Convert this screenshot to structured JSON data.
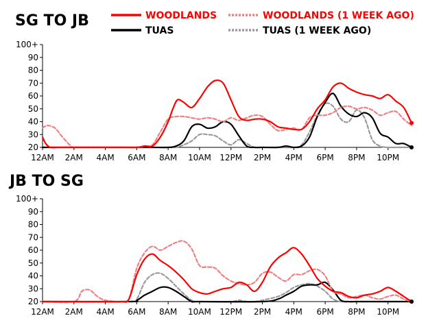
{
  "legend": [
    {
      "label": "WOODLANDS",
      "color": "#ff0000",
      "dashed": false
    },
    {
      "label": "WOODLANDS (1 WEEK AGO)",
      "color": "#f08080",
      "dashed": true
    },
    {
      "label": "TUAS",
      "color": "#000000",
      "dashed": false
    },
    {
      "label": "TUAS (1 WEEK AGO)",
      "color": "#999999",
      "dashed": true
    }
  ],
  "chart_data": [
    {
      "type": "line",
      "title": "SG TO JB",
      "x_ticks": [
        "12AM",
        "2AM",
        "4AM",
        "6AM",
        "8AM",
        "10AM",
        "12PM",
        "2PM",
        "4PM",
        "6PM",
        "8PM",
        "10PM"
      ],
      "y_ticks": [
        "20",
        "30",
        "40",
        "50",
        "60",
        "70",
        "80",
        "90",
        "100+"
      ],
      "ylim": [
        20,
        100
      ],
      "xlim": [
        0,
        23.5
      ],
      "grid": false,
      "legend_position": "top",
      "series": [
        {
          "name": "WOODLANDS",
          "color": "#ff0000",
          "dashed": false,
          "x": [
            0,
            0.2,
            0.5,
            1,
            2,
            4,
            5,
            6,
            6.5,
            7,
            7.5,
            8,
            8.3,
            8.6,
            9,
            9.5,
            10,
            10.5,
            11,
            11.5,
            12,
            12.5,
            13,
            13.5,
            14,
            14.5,
            15,
            15.5,
            16,
            16.5,
            17,
            17.5,
            18,
            18.5,
            19,
            19.5,
            20,
            20.5,
            21,
            21.5,
            22,
            22.5,
            23,
            23.5
          ],
          "y": [
            28,
            23,
            20,
            20,
            20,
            20,
            20,
            20,
            21,
            21,
            28,
            40,
            50,
            57,
            55,
            51,
            58,
            67,
            72,
            70,
            57,
            44,
            41,
            42,
            42,
            40,
            36,
            35,
            34,
            34,
            40,
            50,
            57,
            67,
            70,
            66,
            63,
            61,
            60,
            58,
            61,
            56,
            51,
            39
          ]
        },
        {
          "name": "WOODLANDS (1 WEEK AGO)",
          "color": "#f08080",
          "dashed": true,
          "x": [
            0,
            0.3,
            0.8,
            1.2,
            1.8,
            2,
            4,
            6,
            6.5,
            7,
            7.5,
            8,
            8.5,
            9,
            9.5,
            10,
            10.5,
            11,
            11.5,
            12,
            12.5,
            13,
            13.5,
            14,
            14.5,
            15,
            15.5,
            16,
            16.5,
            17,
            17.5,
            18,
            18.5,
            19,
            19.5,
            20,
            20.5,
            21,
            21.5,
            22,
            22.5,
            23,
            23.5
          ],
          "y": [
            35,
            37,
            35,
            29,
            21,
            20,
            20,
            20,
            21,
            22,
            32,
            42,
            44,
            44,
            43,
            42,
            43,
            42,
            40,
            43,
            41,
            43,
            45,
            44,
            38,
            33,
            34,
            35,
            34,
            43,
            45,
            45,
            47,
            51,
            52,
            50,
            51,
            49,
            45,
            47,
            48,
            42,
            37
          ]
        },
        {
          "name": "TUAS",
          "color": "#000000",
          "dashed": false,
          "x": [
            0,
            6,
            7,
            8,
            8.5,
            9,
            9.5,
            10,
            10.5,
            11,
            11.5,
            12,
            12.5,
            13,
            13.5,
            14,
            15,
            15.5,
            16,
            16.5,
            17,
            17.5,
            18,
            18.5,
            19,
            19.5,
            20,
            20.5,
            21,
            21.5,
            22,
            22.5,
            23,
            23.5
          ],
          "y": [
            20,
            20,
            20,
            20,
            21,
            25,
            36,
            38,
            35,
            36,
            40,
            38,
            29,
            21,
            20,
            20,
            20,
            21,
            20,
            21,
            28,
            44,
            55,
            62,
            52,
            46,
            44,
            47,
            43,
            31,
            28,
            23,
            23,
            20
          ]
        },
        {
          "name": "TUAS (1 WEEK AGO)",
          "color": "#999999",
          "dashed": true,
          "x": [
            0,
            7,
            8,
            8.5,
            9,
            9.5,
            10,
            10.5,
            11,
            11.5,
            12,
            12.5,
            13,
            13.5,
            14,
            15,
            16,
            16.5,
            17,
            17.5,
            18,
            18.5,
            19,
            19.5,
            20,
            20.5,
            21,
            21.5,
            22,
            22.5,
            23,
            23.5
          ],
          "y": [
            20,
            20,
            20,
            20,
            22,
            25,
            30,
            30,
            29,
            25,
            22,
            26,
            23,
            20,
            20,
            20,
            20,
            22,
            32,
            45,
            54,
            52,
            42,
            40,
            49,
            43,
            26,
            21,
            20,
            20,
            20,
            20
          ]
        }
      ]
    },
    {
      "type": "line",
      "title": "JB TO SG",
      "x_ticks": [
        "12AM",
        "2AM",
        "4AM",
        "6AM",
        "8AM",
        "10AM",
        "12PM",
        "2PM",
        "4PM",
        "6PM",
        "8PM",
        "10PM"
      ],
      "y_ticks": [
        "20",
        "30",
        "40",
        "50",
        "60",
        "70",
        "80",
        "90",
        "100+"
      ],
      "ylim": [
        20,
        100
      ],
      "xlim": [
        0,
        23.5
      ],
      "grid": false,
      "legend_position": "top",
      "series": [
        {
          "name": "WOODLANDS",
          "color": "#ff0000",
          "dashed": false,
          "x": [
            0,
            4,
            5,
            5.5,
            6,
            6.5,
            7,
            7.5,
            8,
            8.5,
            9,
            9.5,
            10,
            10.5,
            11,
            11.5,
            12,
            12.5,
            13,
            13.5,
            14,
            14.5,
            15,
            15.5,
            16,
            16.5,
            17,
            17.5,
            18,
            18.5,
            19,
            19.5,
            20,
            20.5,
            21,
            21.5,
            22,
            22.5,
            23,
            23.5
          ],
          "y": [
            20,
            20,
            20,
            22,
            41,
            53,
            57,
            52,
            48,
            43,
            37,
            30,
            27,
            26,
            28,
            30,
            31,
            35,
            33,
            28,
            35,
            47,
            54,
            58,
            62,
            57,
            48,
            38,
            32,
            28,
            27,
            24,
            23,
            25,
            26,
            28,
            31,
            28,
            24,
            20
          ]
        },
        {
          "name": "WOODLANDS (1 WEEK AGO)",
          "color": "#f08080",
          "dashed": true,
          "x": [
            0,
            2,
            2.5,
            3,
            3.5,
            4,
            5,
            5.5,
            6,
            6.5,
            7,
            7.5,
            8,
            8.5,
            9,
            9.5,
            10,
            10.5,
            11,
            11.5,
            12,
            12.5,
            13,
            13.5,
            14,
            14.5,
            15,
            15.5,
            16,
            16.5,
            17,
            17.5,
            18,
            18.5,
            19,
            19.5,
            20,
            20.5,
            21,
            21.5,
            22,
            22.5,
            23,
            23.5
          ],
          "y": [
            20,
            20,
            28,
            29,
            24,
            21,
            20,
            22,
            46,
            58,
            63,
            60,
            63,
            66,
            67,
            61,
            48,
            47,
            46,
            40,
            36,
            34,
            33,
            35,
            42,
            43,
            39,
            36,
            41,
            41,
            44,
            45,
            40,
            28,
            26,
            23,
            24,
            25,
            23,
            22,
            24,
            25,
            22,
            20
          ]
        },
        {
          "name": "TUAS",
          "color": "#000000",
          "dashed": false,
          "x": [
            0,
            5.5,
            6,
            6.5,
            7,
            7.5,
            8,
            8.5,
            9,
            9.5,
            10,
            14,
            15,
            15.5,
            16,
            16.5,
            17,
            17.5,
            18,
            18.5,
            19,
            19.5,
            20,
            23,
            23.5
          ],
          "y": [
            20,
            20,
            21,
            25,
            28,
            31,
            31,
            28,
            24,
            20,
            20,
            20,
            22,
            25,
            28,
            32,
            33,
            33,
            35,
            29,
            21,
            20,
            20,
            20,
            20
          ]
        },
        {
          "name": "TUAS (1 WEEK AGO)",
          "color": "#999999",
          "dashed": true,
          "x": [
            0,
            5.5,
            6,
            6.5,
            7,
            7.5,
            8,
            8.5,
            9,
            9.5,
            10,
            12,
            12.5,
            13,
            13.5,
            14,
            15,
            15.5,
            16,
            16.5,
            17,
            17.5,
            18,
            18.5,
            19,
            19.5,
            20,
            23,
            23.5
          ],
          "y": [
            20,
            20,
            22,
            35,
            41,
            42,
            38,
            32,
            26,
            21,
            20,
            20,
            21,
            20,
            20,
            21,
            24,
            27,
            31,
            33,
            34,
            32,
            28,
            22,
            20,
            20,
            20,
            20,
            20
          ]
        }
      ]
    }
  ]
}
